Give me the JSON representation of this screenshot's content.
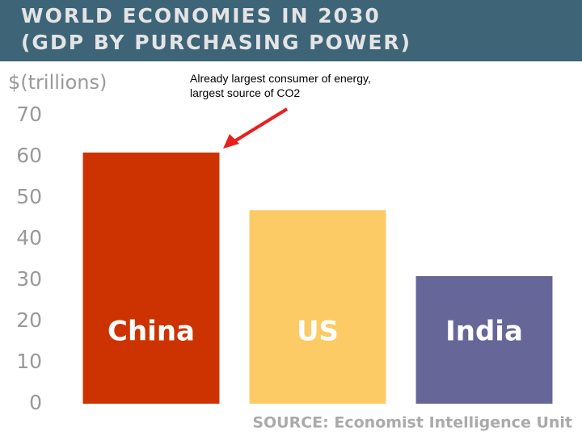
{
  "chart_data": {
    "type": "bar",
    "title": "WORLD ECONOMIES IN 2030",
    "subtitle": "(GDP BY PURCHASING POWER)",
    "y_label": "$(trillions)",
    "annotation": "Already largest consumer of energy, largest source of CO2",
    "source": "SOURCE: Economist Intelligence Unit",
    "categories": [
      "China",
      "US",
      "India"
    ],
    "values": [
      61,
      47,
      31
    ],
    "colors": [
      "#cc3300",
      "#fccb66",
      "#666699"
    ],
    "ylim": [
      0,
      70
    ],
    "yticks": [
      0,
      10,
      20,
      30,
      40,
      50,
      60,
      70
    ],
    "grid": false
  }
}
